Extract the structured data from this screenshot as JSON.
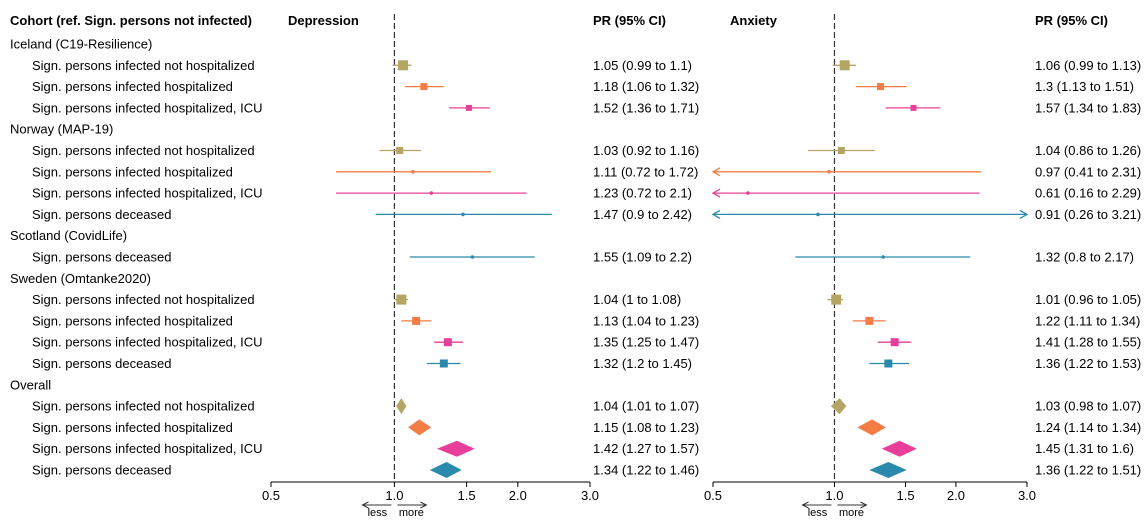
{
  "chart_data": {
    "type": "forest",
    "headers": {
      "cohort": "Cohort (ref. Sign. persons not infected)",
      "panels": [
        "Depression",
        "Anxiety"
      ],
      "ci": [
        "PR (95% CI)",
        "PR  (95% CI)"
      ]
    },
    "direction_labels": {
      "less": "less",
      "more": "more"
    },
    "axis": {
      "scale": "log",
      "ticks": [
        0.5,
        1.0,
        1.5,
        2.0,
        3.0
      ],
      "tick_labels": [
        "0.5",
        "1.0",
        "1.5",
        "2.0",
        "3.0"
      ],
      "reference": 1.0,
      "range": [
        0.5,
        3.0
      ]
    },
    "category_colors": {
      "not_hosp": "#b5a565",
      "hosp": "#f47c45",
      "icu": "#e8409a",
      "deceased": "#2b8aab"
    },
    "rows": [
      {
        "type": "group",
        "label": "Iceland (C19-Resilience)"
      },
      {
        "type": "study",
        "label": "Sign. persons infected not hospitalized",
        "cat": "not_hosp",
        "size": 10,
        "dep": {
          "est": 1.05,
          "lo": 0.99,
          "hi": 1.1,
          "text": "1.05 (0.99 to 1.1)"
        },
        "anx": {
          "est": 1.06,
          "lo": 0.99,
          "hi": 1.13,
          "text": "1.06 (0.99 to 1.13)"
        }
      },
      {
        "type": "study",
        "label": "Sign. persons infected hospitalized",
        "cat": "hosp",
        "size": 7,
        "dep": {
          "est": 1.18,
          "lo": 1.06,
          "hi": 1.32,
          "text": "1.18 (1.06 to 1.32)"
        },
        "anx": {
          "est": 1.3,
          "lo": 1.13,
          "hi": 1.51,
          "text": "1.3 (1.13 to 1.51)"
        }
      },
      {
        "type": "study",
        "label": "Sign. persons infected hospitalized, ICU",
        "cat": "icu",
        "size": 6,
        "dep": {
          "est": 1.52,
          "lo": 1.36,
          "hi": 1.71,
          "text": "1.52 (1.36 to 1.71)"
        },
        "anx": {
          "est": 1.57,
          "lo": 1.34,
          "hi": 1.83,
          "text": "1.57 (1.34 to 1.83)"
        }
      },
      {
        "type": "group",
        "label": "Norway (MAP-19)"
      },
      {
        "type": "study",
        "label": "Sign. persons infected not hospitalized",
        "cat": "not_hosp",
        "size": 7,
        "dep": {
          "est": 1.03,
          "lo": 0.92,
          "hi": 1.16,
          "text": "1.03 (0.92 to 1.16)"
        },
        "anx": {
          "est": 1.04,
          "lo": 0.86,
          "hi": 1.26,
          "text": "1.04 (0.86 to 1.26)"
        }
      },
      {
        "type": "study",
        "label": "Sign. persons infected hospitalized",
        "cat": "hosp",
        "size": 3,
        "dep": {
          "est": 1.11,
          "lo": 0.72,
          "hi": 1.72,
          "text": "1.11 (0.72 to 1.72)"
        },
        "anx": {
          "est": 0.97,
          "lo": 0.41,
          "hi": 2.31,
          "text": "0.97 (0.41 to 2.31)"
        }
      },
      {
        "type": "study",
        "label": "Sign. persons infected hospitalized, ICU",
        "cat": "icu",
        "size": 3,
        "dep": {
          "est": 1.23,
          "lo": 0.72,
          "hi": 2.1,
          "text": "1.23 (0.72 to 2.1)"
        },
        "anx": {
          "est": 0.61,
          "lo": 0.16,
          "hi": 2.29,
          "text": "0.61 (0.16 to 2.29)"
        }
      },
      {
        "type": "study",
        "label": "Sign. persons deceased",
        "cat": "deceased",
        "size": 3,
        "dep": {
          "est": 1.47,
          "lo": 0.9,
          "hi": 2.42,
          "text": "1.47 (0.9 to 2.42)"
        },
        "anx": {
          "est": 0.91,
          "lo": 0.26,
          "hi": 3.21,
          "text": "0.91 (0.26 to 3.21)"
        }
      },
      {
        "type": "group",
        "label": "Scotland (CovidLife)"
      },
      {
        "type": "study",
        "label": "Sign. persons deceased",
        "cat": "deceased",
        "size": 3,
        "dep": {
          "est": 1.55,
          "lo": 1.09,
          "hi": 2.2,
          "text": "1.55 (1.09 to 2.2)"
        },
        "anx": {
          "est": 1.32,
          "lo": 0.8,
          "hi": 2.17,
          "text": "1.32 (0.8 to 2.17)"
        }
      },
      {
        "type": "group",
        "label": "Sweden (Omtanke2020)"
      },
      {
        "type": "study",
        "label": "Sign. persons infected not hospitalized",
        "cat": "not_hosp",
        "size": 10,
        "dep": {
          "est": 1.04,
          "lo": 1.0,
          "hi": 1.08,
          "text": "1.04 (1 to 1.08)"
        },
        "anx": {
          "est": 1.01,
          "lo": 0.96,
          "hi": 1.05,
          "text": "1.01 (0.96 to 1.05)"
        }
      },
      {
        "type": "study",
        "label": "Sign. persons infected hospitalized",
        "cat": "hosp",
        "size": 8,
        "dep": {
          "est": 1.13,
          "lo": 1.04,
          "hi": 1.23,
          "text": "1.13 (1.04 to 1.23)"
        },
        "anx": {
          "est": 1.22,
          "lo": 1.11,
          "hi": 1.34,
          "text": "1.22 (1.11 to 1.34)"
        }
      },
      {
        "type": "study",
        "label": "Sign. persons infected hospitalized, ICU",
        "cat": "icu",
        "size": 8,
        "dep": {
          "est": 1.35,
          "lo": 1.25,
          "hi": 1.47,
          "text": "1.35 (1.25 to 1.47)"
        },
        "anx": {
          "est": 1.41,
          "lo": 1.28,
          "hi": 1.55,
          "text": "1.41 (1.28 to 1.55)"
        }
      },
      {
        "type": "study",
        "label": "Sign. persons deceased",
        "cat": "deceased",
        "size": 8,
        "dep": {
          "est": 1.32,
          "lo": 1.2,
          "hi": 1.45,
          "text": "1.32 (1.2 to 1.45)"
        },
        "anx": {
          "est": 1.36,
          "lo": 1.22,
          "hi": 1.53,
          "text": "1.36 (1.22 to 1.53)"
        }
      },
      {
        "type": "group",
        "label": "Overall"
      },
      {
        "type": "pooled",
        "label": "Sign. persons infected not hospitalized",
        "cat": "not_hosp",
        "dep": {
          "est": 1.04,
          "lo": 1.01,
          "hi": 1.07,
          "text": "1.04 (1.01 to 1.07)"
        },
        "anx": {
          "est": 1.03,
          "lo": 0.98,
          "hi": 1.07,
          "text": "1.03 (0.98 to 1.07)"
        }
      },
      {
        "type": "pooled",
        "label": "Sign. persons infected hospitalized",
        "cat": "hosp",
        "dep": {
          "est": 1.15,
          "lo": 1.08,
          "hi": 1.23,
          "text": "1.15 (1.08 to 1.23)"
        },
        "anx": {
          "est": 1.24,
          "lo": 1.14,
          "hi": 1.34,
          "text": "1.24 (1.14 to 1.34)"
        }
      },
      {
        "type": "pooled",
        "label": "Sign. persons infected hospitalized, ICU",
        "cat": "icu",
        "dep": {
          "est": 1.42,
          "lo": 1.27,
          "hi": 1.57,
          "text": "1.42 (1.27 to 1.57)"
        },
        "anx": {
          "est": 1.45,
          "lo": 1.31,
          "hi": 1.6,
          "text": "1.45 (1.31 to 1.6)"
        }
      },
      {
        "type": "pooled",
        "label": "Sign. persons deceased",
        "cat": "deceased",
        "dep": {
          "est": 1.34,
          "lo": 1.22,
          "hi": 1.46,
          "text": "1.34 (1.22 to 1.46)"
        },
        "anx": {
          "est": 1.36,
          "lo": 1.22,
          "hi": 1.51,
          "text": "1.36 (1.22 to 1.51)"
        }
      }
    ]
  }
}
